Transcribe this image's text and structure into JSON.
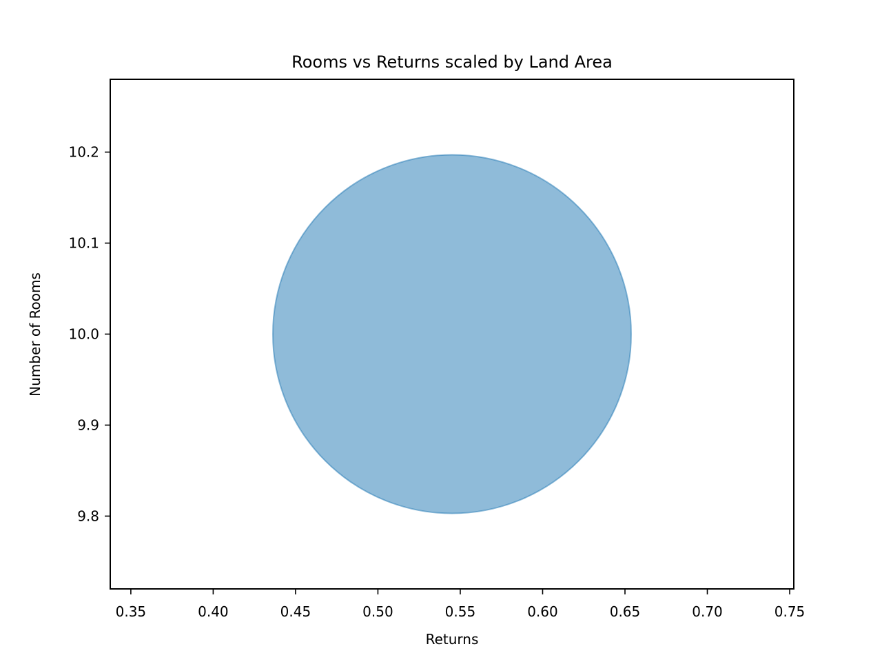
{
  "chart_data": {
    "type": "scatter",
    "title": "Rooms vs Returns scaled by Land Area",
    "xlabel": "Returns",
    "ylabel": "Number of Rooms",
    "xlim": [
      0.3375,
      0.7525
    ],
    "ylim": [
      9.72,
      10.28
    ],
    "x_ticks": [
      0.35,
      0.4,
      0.45,
      0.5,
      0.55,
      0.6,
      0.65,
      0.7,
      0.75
    ],
    "x_tick_labels": [
      "0.35",
      "0.40",
      "0.45",
      "0.50",
      "0.55",
      "0.60",
      "0.65",
      "0.70",
      "0.75"
    ],
    "y_ticks": [
      9.8,
      9.9,
      10.0,
      10.1,
      10.2
    ],
    "y_tick_labels": [
      "9.8",
      "9.9",
      "10.0",
      "10.1",
      "10.2"
    ],
    "grid": false,
    "points": [
      {
        "x": 0.545,
        "y": 10.0
      }
    ],
    "marker_color": "#1f77b4",
    "marker_alpha": 0.5
  }
}
